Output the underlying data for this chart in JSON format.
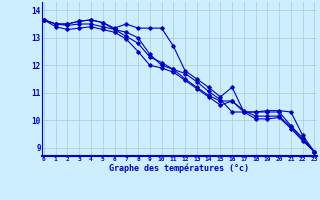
{
  "xlabel": "Graphe des températures (°c)",
  "background_color": "#cceeff",
  "line_color": "#0000cc",
  "grid_color": "#aacccc",
  "xmin": 0,
  "xmax": 23,
  "ymin": 8.7,
  "ymax": 14.3,
  "yticks": [
    9,
    10,
    11,
    12,
    13,
    14
  ],
  "xticks": [
    0,
    1,
    2,
    3,
    4,
    5,
    6,
    7,
    8,
    9,
    10,
    11,
    12,
    13,
    14,
    15,
    16,
    17,
    18,
    19,
    20,
    21,
    22,
    23
  ],
  "hours": [
    0,
    1,
    2,
    3,
    4,
    5,
    6,
    7,
    8,
    9,
    10,
    11,
    12,
    13,
    14,
    15,
    16,
    17,
    18,
    19,
    20,
    21,
    22,
    23
  ],
  "line1": [
    13.65,
    13.5,
    13.5,
    13.6,
    13.65,
    13.55,
    13.35,
    13.5,
    13.35,
    13.35,
    13.35,
    12.7,
    11.8,
    11.5,
    11.2,
    10.85,
    11.2,
    10.3,
    10.3,
    10.35,
    10.35,
    10.3,
    9.45,
    8.85
  ],
  "line2": [
    13.65,
    13.5,
    13.5,
    13.6,
    13.65,
    13.55,
    13.3,
    13.2,
    13.0,
    12.4,
    12.0,
    11.85,
    11.7,
    11.4,
    11.05,
    10.75,
    10.3,
    10.3,
    10.3,
    10.3,
    10.3,
    9.8,
    9.35,
    8.85
  ],
  "line3": [
    13.65,
    13.5,
    13.45,
    13.5,
    13.5,
    13.4,
    13.3,
    13.05,
    12.8,
    12.3,
    12.1,
    11.85,
    11.5,
    11.2,
    10.9,
    10.7,
    10.7,
    10.35,
    10.15,
    10.15,
    10.15,
    9.75,
    9.3,
    8.85
  ],
  "line4": [
    13.65,
    13.4,
    13.3,
    13.35,
    13.4,
    13.3,
    13.2,
    12.95,
    12.5,
    12.0,
    11.9,
    11.75,
    11.45,
    11.15,
    10.85,
    10.55,
    10.7,
    10.3,
    10.05,
    10.05,
    10.1,
    9.7,
    9.25,
    8.85
  ]
}
